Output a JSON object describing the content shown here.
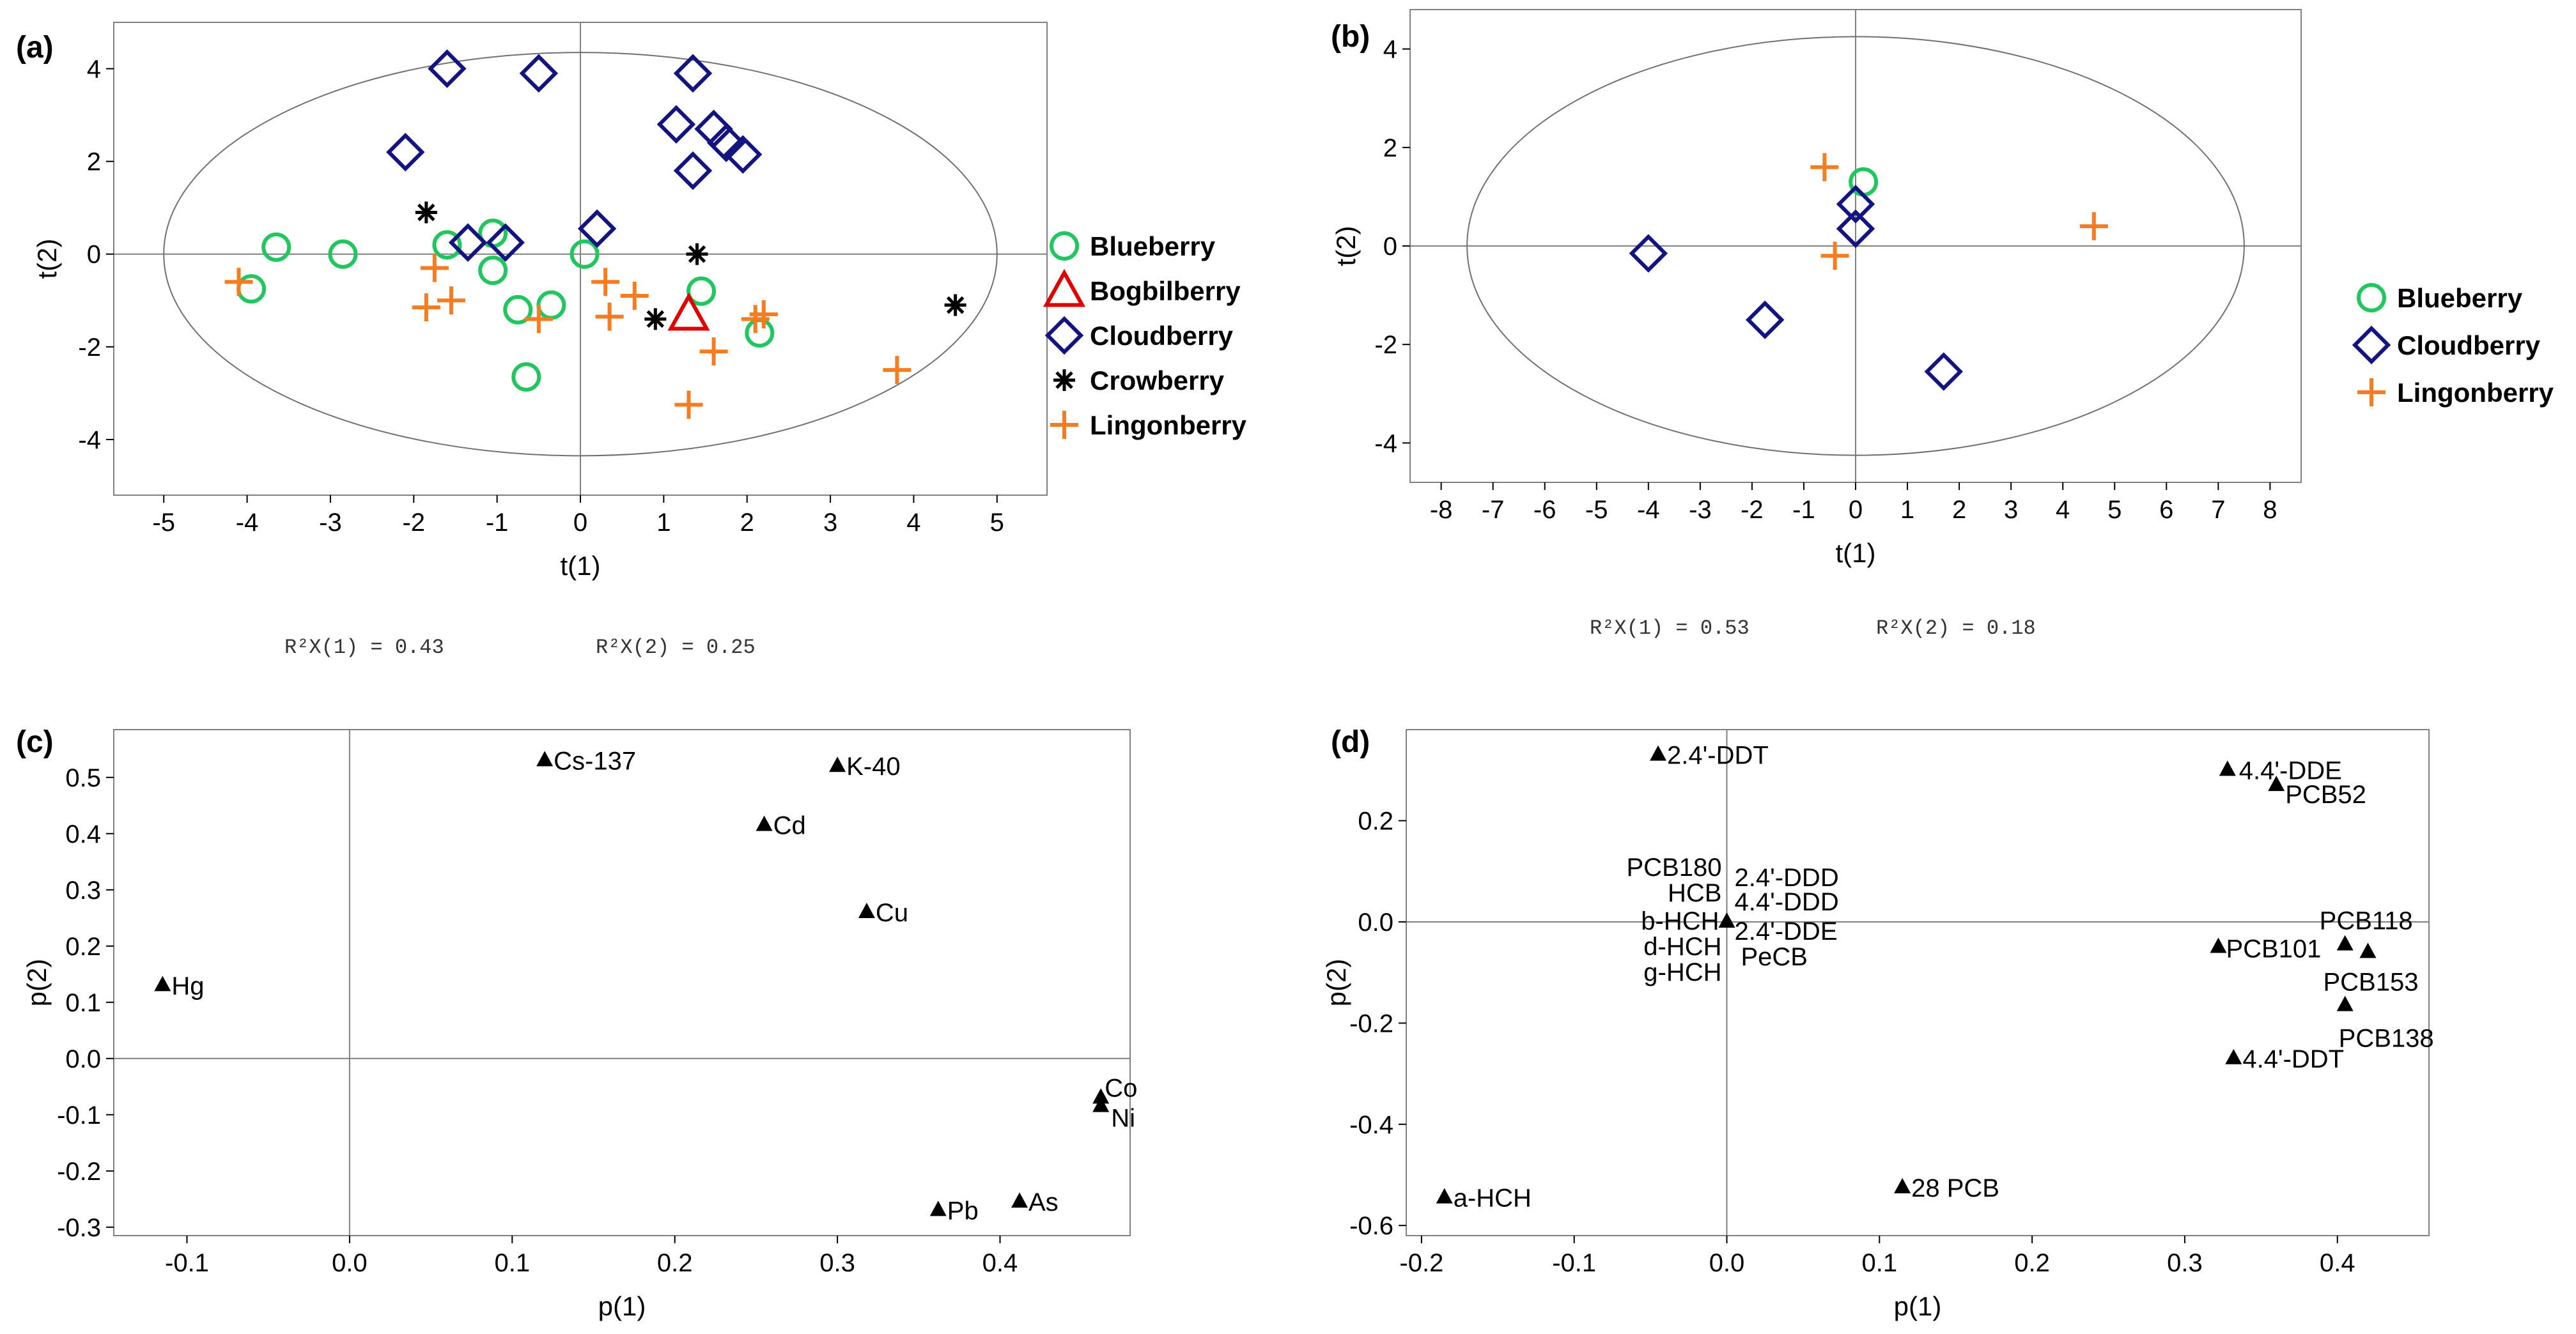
{
  "chart_data": [
    {
      "panel": "(a)",
      "type": "scatter",
      "xlabel": "t(1)",
      "ylabel": "t(2)",
      "xlim": [
        -5.6,
        5.6
      ],
      "ylim": [
        -5.2,
        5.0
      ],
      "xticks": [
        -5,
        -4,
        -3,
        -2,
        -1,
        0,
        1,
        2,
        3,
        4,
        5
      ],
      "yticks": [
        -4,
        -2,
        0,
        2,
        4
      ],
      "ellipse": {
        "rx": 5.0,
        "ry": 4.35
      },
      "r2": {
        "label1": "R²X(1) = 0.43",
        "label2": "R²X(2) = 0.25"
      },
      "legend": [
        {
          "name": "Blueberry",
          "marker": "circle",
          "color": "#22c55e"
        },
        {
          "name": "Bogbilberry",
          "marker": "triangle",
          "color": "#e10000"
        },
        {
          "name": "Cloudberry",
          "marker": "diamond",
          "color": "#141480"
        },
        {
          "name": "Crowberry",
          "marker": "asterisk",
          "color": "#000000"
        },
        {
          "name": "Lingonberry",
          "marker": "plus",
          "color": "#f57c20"
        }
      ],
      "series": [
        {
          "name": "Blueberry",
          "points": [
            [
              -3.95,
              -0.75
            ],
            [
              -3.65,
              0.15
            ],
            [
              -2.85,
              0.0
            ],
            [
              -1.6,
              0.2
            ],
            [
              -1.05,
              0.45
            ],
            [
              -1.05,
              -0.35
            ],
            [
              -0.75,
              -1.2
            ],
            [
              -0.35,
              -1.1
            ],
            [
              0.05,
              0.0
            ],
            [
              1.45,
              -0.8
            ],
            [
              2.15,
              -1.7
            ],
            [
              -0.65,
              -2.65
            ]
          ]
        },
        {
          "name": "Bogbilberry",
          "points": [
            [
              1.3,
              -1.3
            ]
          ]
        },
        {
          "name": "Cloudberry",
          "points": [
            [
              -1.6,
              4.0
            ],
            [
              -0.5,
              3.9
            ],
            [
              1.35,
              3.9
            ],
            [
              1.15,
              2.8
            ],
            [
              1.6,
              2.7
            ],
            [
              1.75,
              2.4
            ],
            [
              1.95,
              2.15
            ],
            [
              1.35,
              1.8
            ],
            [
              -2.1,
              2.2
            ],
            [
              0.2,
              0.55
            ],
            [
              -1.35,
              0.25
            ],
            [
              -0.9,
              0.25
            ]
          ]
        },
        {
          "name": "Crowberry",
          "points": [
            [
              -1.85,
              0.9
            ],
            [
              1.4,
              0.0
            ],
            [
              0.9,
              -1.4
            ],
            [
              4.5,
              -1.1
            ]
          ]
        },
        {
          "name": "Lingonberry",
          "points": [
            [
              -4.1,
              -0.6
            ],
            [
              -1.75,
              -0.3
            ],
            [
              -1.85,
              -1.15
            ],
            [
              -1.55,
              -1.0
            ],
            [
              -0.5,
              -1.4
            ],
            [
              0.3,
              -0.6
            ],
            [
              0.35,
              -1.35
            ],
            [
              0.65,
              -0.9
            ],
            [
              1.3,
              -3.25
            ],
            [
              1.6,
              -2.1
            ],
            [
              2.1,
              -1.4
            ],
            [
              2.2,
              -1.3
            ],
            [
              3.8,
              -2.5
            ]
          ]
        }
      ]
    },
    {
      "panel": "(b)",
      "type": "scatter",
      "xlabel": "t(1)",
      "ylabel": "t(2)",
      "xlim": [
        -8.6,
        8.6
      ],
      "ylim": [
        -4.8,
        4.8
      ],
      "xticks": [
        -8,
        -7,
        -6,
        -5,
        -4,
        -3,
        -2,
        -1,
        0,
        1,
        2,
        3,
        4,
        5,
        6,
        7,
        8
      ],
      "yticks": [
        -4,
        -2,
        0,
        2,
        4
      ],
      "ellipse": {
        "rx": 7.5,
        "ry": 4.25
      },
      "r2": {
        "label1": "R²X(1) = 0.53",
        "label2": "R²X(2) = 0.18"
      },
      "legend": [
        {
          "name": "Blueberry",
          "marker": "circle",
          "color": "#22c55e"
        },
        {
          "name": "Cloudberry",
          "marker": "diamond",
          "color": "#141480"
        },
        {
          "name": "Lingonberry",
          "marker": "plus",
          "color": "#f57c20"
        }
      ],
      "series": [
        {
          "name": "Blueberry",
          "points": [
            [
              0.15,
              1.3
            ]
          ]
        },
        {
          "name": "Cloudberry",
          "points": [
            [
              0.0,
              0.85
            ],
            [
              0.0,
              0.35
            ],
            [
              -4.0,
              -0.15
            ],
            [
              -1.75,
              -1.5
            ],
            [
              1.7,
              -2.55
            ]
          ]
        },
        {
          "name": "Lingonberry",
          "points": [
            [
              -0.6,
              1.6
            ],
            [
              -0.4,
              -0.2
            ],
            [
              4.6,
              0.4
            ]
          ]
        }
      ]
    },
    {
      "panel": "(c)",
      "type": "scatter",
      "xlabel": "p(1)",
      "ylabel": "p(2)",
      "xlim": [
        -0.145,
        0.48
      ],
      "ylim": [
        -0.315,
        0.585
      ],
      "xticks": [
        -0.1,
        0.0,
        0.1,
        0.2,
        0.3,
        0.4
      ],
      "xtick_labels": [
        "-0.1",
        "0.0",
        "0.1",
        "0.2",
        "0.3",
        "0.4"
      ],
      "yticks": [
        -0.3,
        -0.2,
        -0.1,
        0.0,
        0.1,
        0.2,
        0.3,
        0.4,
        0.5
      ],
      "ytick_labels": [
        "-0.3",
        "-0.2",
        "-0.1",
        "0.0",
        "0.1",
        "0.2",
        "0.3",
        "0.4",
        "0.5"
      ],
      "points": [
        {
          "label": "Cs-137",
          "x": 0.12,
          "y": 0.53
        },
        {
          "label": "K-40",
          "x": 0.3,
          "y": 0.52
        },
        {
          "label": "Cd",
          "x": 0.255,
          "y": 0.415
        },
        {
          "label": "Cu",
          "x": 0.318,
          "y": 0.26
        },
        {
          "label": "Hg",
          "x": -0.115,
          "y": 0.13
        },
        {
          "label": "Co",
          "x": 0.462,
          "y": -0.07
        },
        {
          "label": "Ni",
          "x": 0.462,
          "y": -0.085
        },
        {
          "label": "Pb",
          "x": 0.362,
          "y": -0.27
        },
        {
          "label": "As",
          "x": 0.412,
          "y": -0.255
        }
      ]
    },
    {
      "panel": "(d)",
      "type": "scatter",
      "xlabel": "p(1)",
      "ylabel": "p(2)",
      "xlim": [
        -0.21,
        0.46
      ],
      "ylim": [
        -0.62,
        0.38
      ],
      "xticks": [
        -0.2,
        -0.1,
        0.0,
        0.1,
        0.2,
        0.3,
        0.4
      ],
      "xtick_labels": [
        "-0.2",
        "-0.1",
        "0.0",
        "0.1",
        "0.2",
        "0.3",
        "0.4"
      ],
      "yticks": [
        -0.6,
        -0.4,
        -0.2,
        0.0,
        0.2
      ],
      "ytick_labels": [
        "-0.6",
        "-0.4",
        "-0.2",
        "0.0",
        "0.2"
      ],
      "points": [
        {
          "label": "2.4'-DDT",
          "x": -0.045,
          "y": 0.33
        },
        {
          "label": "4.4'-DDE",
          "x": 0.328,
          "y": 0.3
        },
        {
          "label": "PCB52",
          "x": 0.36,
          "y": 0.27
        },
        {
          "label": "PCB180",
          "x": 0.0,
          "y": 0.0
        },
        {
          "label": "2.4'-DDD",
          "x": 0.0,
          "y": 0.0
        },
        {
          "label": "HCB",
          "x": 0.0,
          "y": 0.0
        },
        {
          "label": "4.4'-DDD",
          "x": 0.0,
          "y": 0.0
        },
        {
          "label": "b-HCH",
          "x": 0.0,
          "y": 0.0
        },
        {
          "label": "2.4'-DDE",
          "x": 0.0,
          "y": 0.0
        },
        {
          "label": "d-HCH",
          "x": 0.0,
          "y": 0.0
        },
        {
          "label": "PeCB",
          "x": 0.0,
          "y": 0.0
        },
        {
          "label": "g-HCH",
          "x": 0.0,
          "y": 0.0
        },
        {
          "label": "PCB118",
          "x": 0.405,
          "y": -0.045
        },
        {
          "label": "PCB101",
          "x": 0.322,
          "y": -0.05
        },
        {
          "label": "PCB153",
          "x": 0.42,
          "y": -0.06
        },
        {
          "label": "PCB138",
          "x": 0.405,
          "y": -0.165
        },
        {
          "label": "4.4'-DDT",
          "x": 0.332,
          "y": -0.27
        },
        {
          "label": "28 PCB",
          "x": 0.115,
          "y": -0.525
        },
        {
          "label": "a-HCH",
          "x": -0.185,
          "y": -0.545
        }
      ]
    }
  ]
}
